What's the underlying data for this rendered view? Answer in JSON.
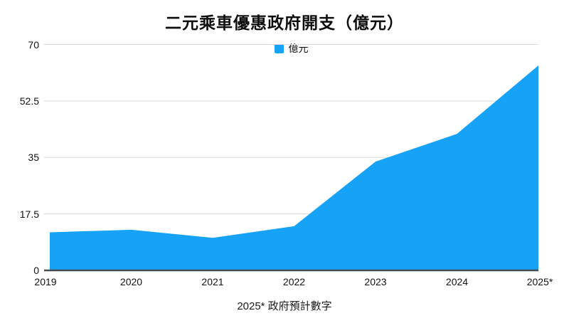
{
  "page": {
    "background_color": "#ffffff"
  },
  "header": {
    "title": "二元乘車優惠政府開支（億元）"
  },
  "legend": {
    "label": "億元",
    "swatch_color": "#16a2f6"
  },
  "footer": {
    "note": "2025* 政府預計數字"
  },
  "chart_data": {
    "type": "area",
    "title": "二元乘車優惠政府開支（億元）",
    "categories": [
      "2019",
      "2020",
      "2021",
      "2022",
      "2023",
      "2024",
      "2025*"
    ],
    "series": [
      {
        "name": "億元",
        "values": [
          11.8,
          12.6,
          10.1,
          13.7,
          33.7,
          42.3,
          63.5
        ]
      }
    ],
    "xlabel": "",
    "ylabel": "",
    "ylim": [
      0,
      70
    ],
    "yticks": [
      0,
      17.5,
      35,
      52.5,
      70
    ],
    "grid": "horizontal",
    "legend_position": "top-center",
    "annotations": [
      "2025* 政府預計數字"
    ],
    "colors": {
      "area_fill": "#16a2f6",
      "gridline": "#d9d9d9",
      "axis_line": "#474c51",
      "text": "#111111"
    }
  }
}
